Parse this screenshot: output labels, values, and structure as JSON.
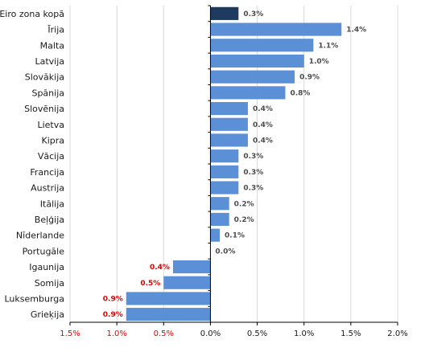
{
  "chart_data": {
    "type": "bar",
    "orientation": "horizontal",
    "title": "",
    "xlabel": "",
    "ylabel": "",
    "xlim": [
      -1.5,
      2.0
    ],
    "grid": true,
    "legend": "none",
    "x_ticks": [
      "1.5%",
      "1.0%",
      "0.5%",
      "0.0%",
      "0.5%",
      "1.0%",
      "1.5%",
      "2.0%"
    ],
    "x_tick_values": [
      -1.5,
      -1.0,
      -0.5,
      0.0,
      0.5,
      1.0,
      1.5,
      2.0
    ],
    "categories": [
      "Eiro zona kopā",
      "Īrija",
      "Malta",
      "Latvija",
      "Slovākija",
      "Spānija",
      "Slovēnija",
      "Lietva",
      "Kipra",
      "Vācija",
      "Francija",
      "Austrija",
      "Itālija",
      "Beļģija",
      "Nīderlande",
      "Portugāle",
      "Igaunija",
      "Somija",
      "Luksemburga",
      "Grieķija"
    ],
    "values": [
      0.3,
      1.4,
      1.1,
      1.0,
      0.9,
      0.8,
      0.4,
      0.4,
      0.4,
      0.3,
      0.3,
      0.3,
      0.2,
      0.2,
      0.1,
      0.0,
      -0.4,
      -0.5,
      -0.9,
      -0.9
    ],
    "labels": [
      "0.3%",
      "1.4%",
      "1.1%",
      "1.0%",
      "0.9%",
      "0.8%",
      "0.4%",
      "0.4%",
      "0.4%",
      "0.3%",
      "0.3%",
      "0.3%",
      "0.2%",
      "0.2%",
      "0.1%",
      "0.0%",
      "0.4%",
      "0.5%",
      "0.9%",
      "0.9%"
    ],
    "colors": {
      "bar": "#5b8fd6",
      "highlight_bar": "#1f3a5f",
      "positive_text": "#4d4d4d",
      "negative_text": "#e00000",
      "grid": "#d9d9d9",
      "axis": "#000000"
    }
  }
}
